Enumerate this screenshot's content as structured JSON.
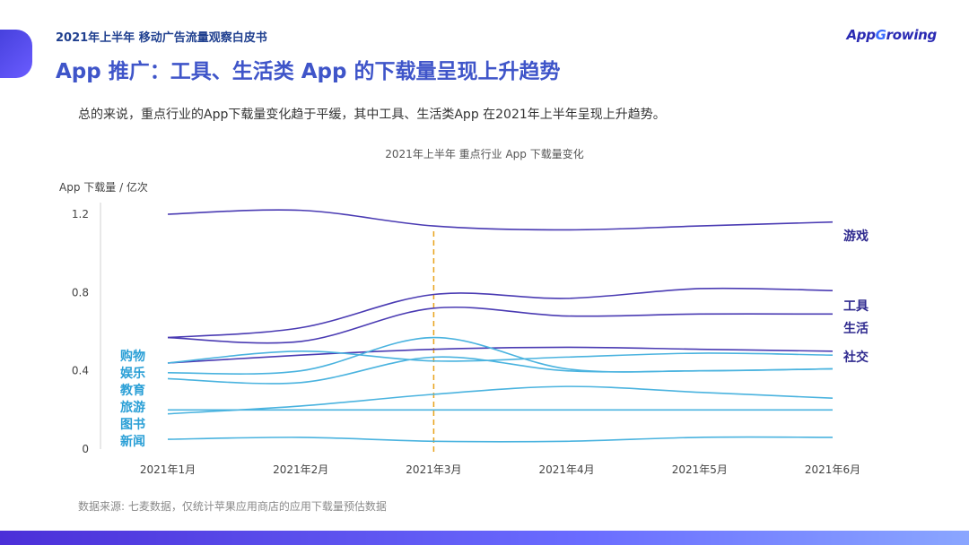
{
  "header": {
    "report_title": "2021年上半年 移动广告流量观察白皮书",
    "logo_prefix": "App",
    "logo_g": "G",
    "logo_suffix": "rowing"
  },
  "page_title": "App 推广：工具、生活类 App 的下载量呈现上升趋势",
  "subtitle": "总的来说，重点行业的App下载量变化趋于平缓，其中工具、生活类App 在2021年上半年呈现上升趋势。",
  "source_note": "数据来源: 七麦数据，仅统计苹果应用商店的应用下载量预估数据",
  "chart_data": {
    "type": "line",
    "title": "2021年上半年 重点行业 App 下载量变化",
    "ylabel": "App 下载量 / 亿次",
    "xlabel": "",
    "categories": [
      "2021年1月",
      "2021年2月",
      "2021年3月",
      "2021年4月",
      "2021年5月",
      "2021年6月"
    ],
    "ylim": [
      0,
      1.2
    ],
    "yticks": [
      0,
      0.4,
      0.8,
      1.2
    ],
    "grid": false,
    "marker_line": {
      "category": "2021年3月",
      "color": "#e8a21a",
      "style": "dashed"
    },
    "series": [
      {
        "name": "游戏",
        "values": [
          1.2,
          1.22,
          1.14,
          1.12,
          1.14,
          1.16
        ],
        "color": "#4a3bb3",
        "label_side": "right"
      },
      {
        "name": "工具",
        "values": [
          0.57,
          0.62,
          0.79,
          0.77,
          0.82,
          0.81
        ],
        "color": "#4a3bb3",
        "label_side": "right"
      },
      {
        "name": "生活",
        "values": [
          0.57,
          0.55,
          0.72,
          0.68,
          0.69,
          0.69
        ],
        "color": "#4a3bb3",
        "label_side": "right"
      },
      {
        "name": "社交",
        "values": [
          0.44,
          0.48,
          0.51,
          0.52,
          0.51,
          0.5
        ],
        "color": "#4a3bb3",
        "label_side": "right"
      },
      {
        "name": "购物",
        "values": [
          0.44,
          0.5,
          0.45,
          0.47,
          0.49,
          0.48
        ],
        "color": "#4ab3df",
        "label_side": "left"
      },
      {
        "name": "娱乐",
        "values": [
          0.39,
          0.4,
          0.57,
          0.41,
          0.4,
          0.41
        ],
        "color": "#4ab3df",
        "label_side": "left"
      },
      {
        "name": "教育",
        "values": [
          0.36,
          0.34,
          0.47,
          0.4,
          0.4,
          0.41
        ],
        "color": "#4ab3df",
        "label_side": "left"
      },
      {
        "name": "旅游",
        "values": [
          0.18,
          0.22,
          0.28,
          0.32,
          0.29,
          0.26
        ],
        "color": "#4ab3df",
        "label_side": "left"
      },
      {
        "name": "图书",
        "values": [
          0.2,
          0.2,
          0.2,
          0.2,
          0.2,
          0.2
        ],
        "color": "#4ab3df",
        "label_side": "left"
      },
      {
        "name": "新闻",
        "values": [
          0.05,
          0.06,
          0.04,
          0.04,
          0.06,
          0.06
        ],
        "color": "#4ab3df",
        "label_side": "left"
      }
    ]
  }
}
